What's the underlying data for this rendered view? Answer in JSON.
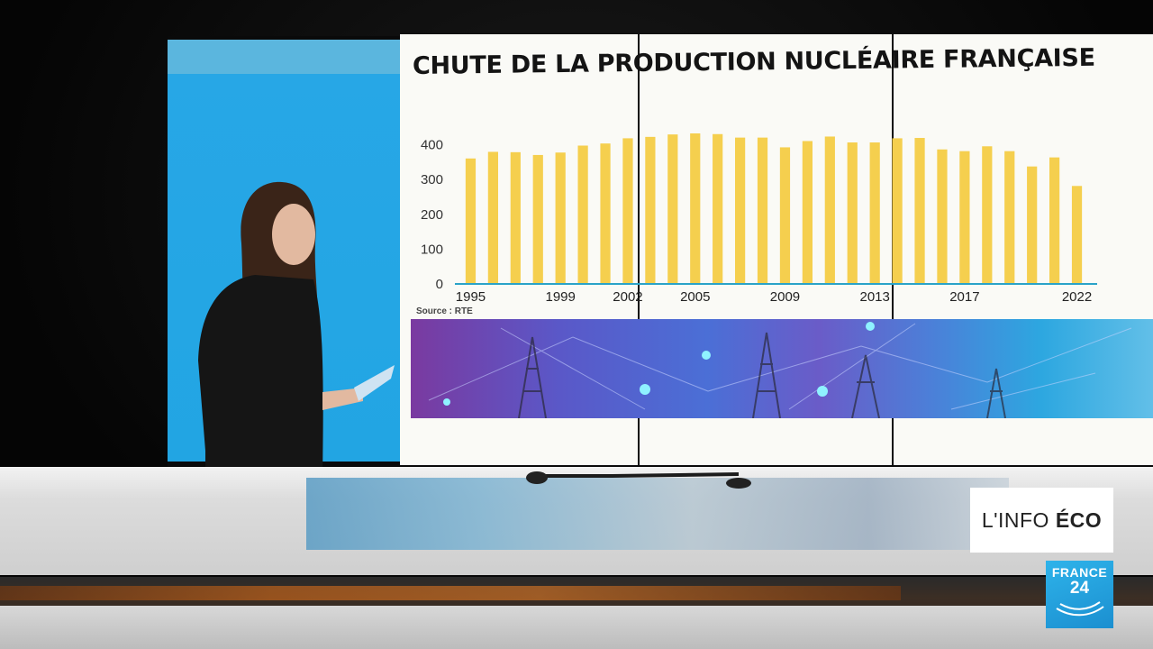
{
  "chart_data": {
    "type": "bar",
    "title": "CHUTE DE LA PRODUCTION NUCLÉAIRE FRANÇAISE",
    "source": "Source : RTE",
    "x": [
      1995,
      1996,
      1997,
      1998,
      1999,
      2000,
      2001,
      2002,
      2003,
      2004,
      2005,
      2006,
      2007,
      2008,
      2009,
      2010,
      2011,
      2012,
      2013,
      2014,
      2015,
      2016,
      2017,
      2018,
      2019,
      2020,
      2021,
      2022
    ],
    "values": [
      358,
      377,
      376,
      368,
      375,
      395,
      401,
      416,
      420,
      427,
      430,
      428,
      418,
      418,
      390,
      408,
      421,
      404,
      404,
      416,
      417,
      384,
      379,
      393,
      379,
      335,
      361,
      279
    ],
    "x_tick_labels": [
      "1995",
      "1999",
      "2002",
      "2005",
      "2009",
      "2013",
      "2017",
      "2022"
    ],
    "y_ticks": [
      0,
      100,
      200,
      300,
      400
    ],
    "ylim": [
      0,
      430
    ],
    "bar_color": "#f5cf4e",
    "baseline_color": "#2aa3c8"
  },
  "overlay": {
    "program_prefix": "L'INFO ",
    "program_bold": "ÉCO",
    "channel_top": "FRANCE",
    "channel_number": "24"
  },
  "colors": {
    "brand_blue": "#22a5e3",
    "screen_bg": "#fafaf6"
  }
}
